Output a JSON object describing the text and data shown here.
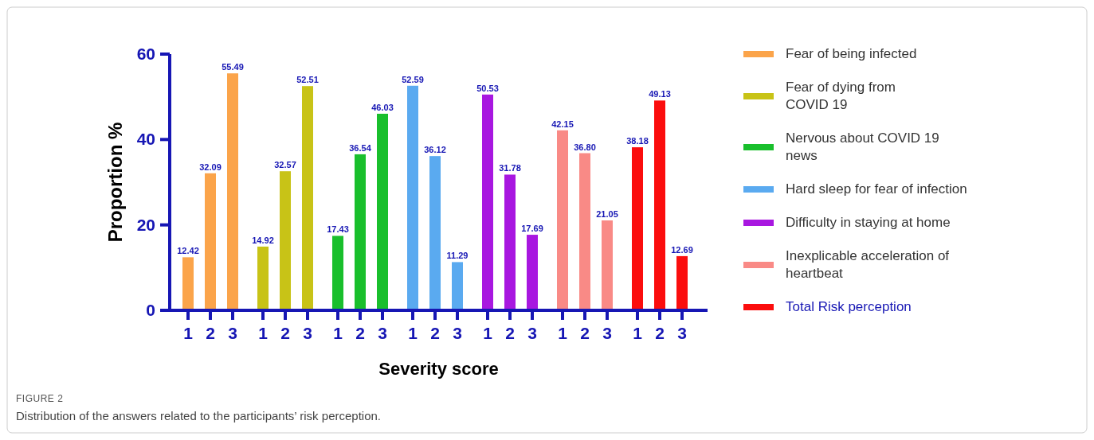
{
  "chart_data": {
    "type": "bar",
    "xlabel": "Severity score",
    "ylabel": "Proportion %",
    "categories": [
      "1",
      "2",
      "3",
      "1",
      "2",
      "3",
      "1",
      "2",
      "3",
      "1",
      "2",
      "3",
      "1",
      "2",
      "3",
      "1",
      "2",
      "3",
      "1",
      "2",
      "3"
    ],
    "data_labels": true,
    "ylim": [
      0,
      60
    ],
    "yticks": [
      0,
      20,
      40,
      60
    ],
    "grid": false,
    "legend": "right",
    "series": [
      {
        "name": "Fear of being infected",
        "color": "#fba44a",
        "values": [
          12.42,
          32.09,
          55.49,
          null,
          null,
          null,
          null,
          null,
          null,
          null,
          null,
          null,
          null,
          null,
          null,
          null,
          null,
          null,
          null,
          null,
          null
        ]
      },
      {
        "name": "Fear of dying from\nCOVID 19",
        "color": "#c8c317",
        "values": [
          null,
          null,
          null,
          14.92,
          32.57,
          52.51,
          null,
          null,
          null,
          null,
          null,
          null,
          null,
          null,
          null,
          null,
          null,
          null,
          null,
          null,
          null
        ]
      },
      {
        "name": "Nervous about COVID 19\nnews",
        "color": "#19bf2c",
        "values": [
          null,
          null,
          null,
          null,
          null,
          null,
          17.43,
          36.54,
          46.03,
          null,
          null,
          null,
          null,
          null,
          null,
          null,
          null,
          null,
          null,
          null,
          null
        ]
      },
      {
        "name": "Hard sleep for fear of infection",
        "color": "#5aaaf0",
        "values": [
          null,
          null,
          null,
          null,
          null,
          null,
          null,
          null,
          null,
          52.59,
          36.12,
          11.29,
          null,
          null,
          null,
          null,
          null,
          null,
          null,
          null,
          null
        ]
      },
      {
        "name": "Difficulty in staying at home",
        "color": "#a817e0",
        "values": [
          null,
          null,
          null,
          null,
          null,
          null,
          null,
          null,
          null,
          null,
          null,
          null,
          50.53,
          31.78,
          17.69,
          null,
          null,
          null,
          null,
          null,
          null
        ]
      },
      {
        "name": "Inexplicable acceleration of\nheartbeat",
        "color": "#f98a86",
        "values": [
          null,
          null,
          null,
          null,
          null,
          null,
          null,
          null,
          null,
          null,
          null,
          null,
          null,
          null,
          null,
          42.15,
          36.8,
          21.05,
          null,
          null,
          null
        ],
        "value_labels": [
          null,
          null,
          null,
          null,
          null,
          null,
          null,
          null,
          null,
          null,
          null,
          null,
          null,
          null,
          null,
          "42.15",
          "36.80",
          "21.05",
          null,
          null,
          null
        ]
      },
      {
        "name": "Total Risk perception",
        "color": "#fb0d0d",
        "values": [
          null,
          null,
          null,
          null,
          null,
          null,
          null,
          null,
          null,
          null,
          null,
          null,
          null,
          null,
          null,
          null,
          null,
          null,
          38.18,
          49.13,
          12.69
        ]
      }
    ],
    "annotations": [
      "FIGURE 2",
      "Distribution of the answers related to the participants’ risk perception."
    ]
  }
}
